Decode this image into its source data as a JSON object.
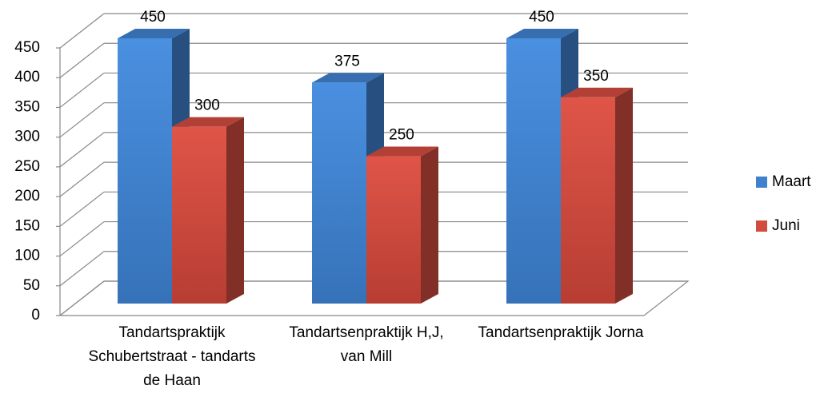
{
  "chart_data": {
    "type": "bar3d",
    "categories": [
      "Tandartspraktijk Schubertstraat - tandarts de Haan",
      "Tandartsenpraktijk H,J, van Mill",
      "Tandartsenpraktijk Jorna"
    ],
    "series": [
      {
        "name": "Maart",
        "color": "#3f81cf",
        "values": [
          450,
          375,
          450
        ]
      },
      {
        "name": "Juni",
        "color": "#d24b3f",
        "values": [
          300,
          250,
          350
        ]
      }
    ],
    "ylim": [
      0,
      450
    ],
    "yticks": [
      0,
      50,
      100,
      150,
      200,
      250,
      300,
      350,
      400,
      450
    ],
    "grid": true,
    "legend": "right"
  }
}
